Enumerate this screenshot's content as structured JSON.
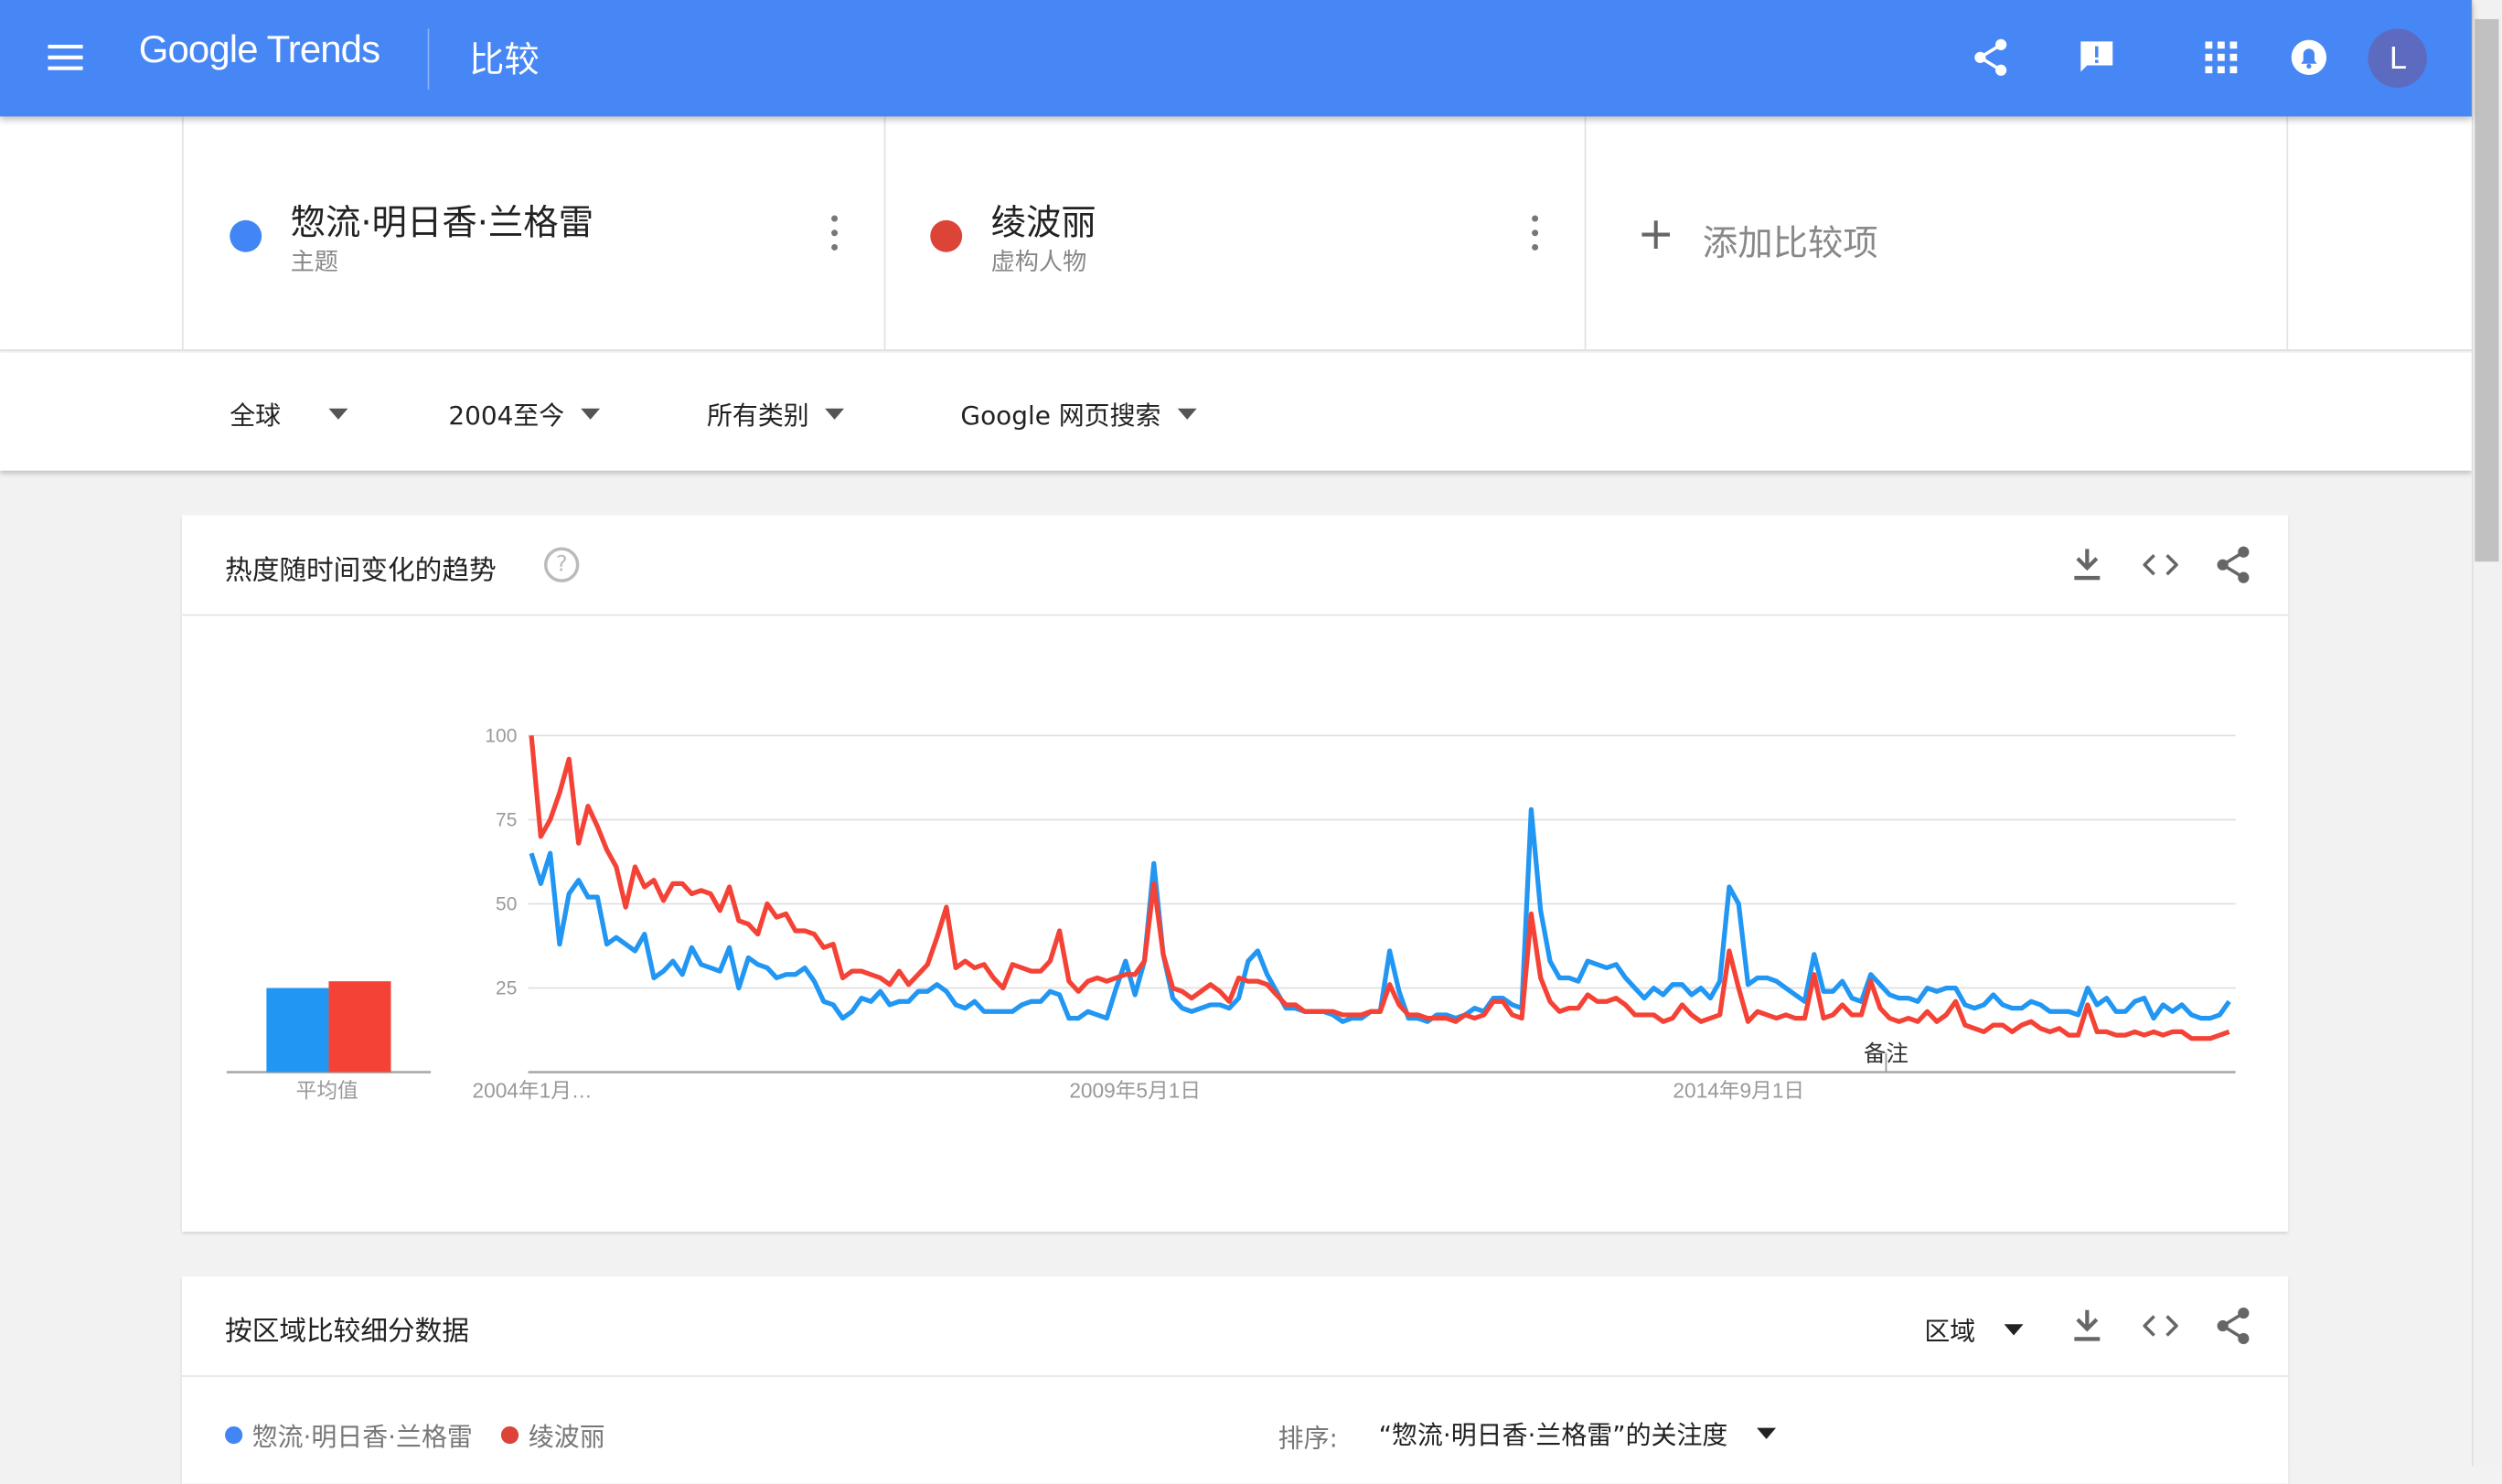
{
  "header": {
    "logo": "Google Trends",
    "title": "比较",
    "avatar_letter": "L",
    "color": "#4787f5",
    "icons": [
      "menu-icon",
      "share-icon",
      "feedback-icon",
      "apps-icon",
      "notifications-icon"
    ]
  },
  "terms": [
    {
      "name": "惣流·明日香·兰格雷",
      "type": "主题",
      "color": "#4285f4"
    },
    {
      "name": "绫波丽",
      "type": "虚构人物",
      "color": "#db4437"
    }
  ],
  "add_term": "添加比较项",
  "filters": [
    {
      "label": "全球"
    },
    {
      "label": "2004至今"
    },
    {
      "label": "所有类别"
    },
    {
      "label": "Google 网页搜索"
    }
  ],
  "interest_card": {
    "title": "热度随时间变化的趋势",
    "average_label": "平均值",
    "note_label": "备注"
  },
  "region_card": {
    "title": "按区域比较细分数据",
    "resolution": "区域",
    "legend": [
      "惣流·明日香·兰格雷",
      "绫波丽"
    ],
    "sort_label": "排序:",
    "sort_value": "“惣流·明日香·兰格雷”的关注度"
  },
  "chart_data": {
    "type": "line",
    "ylim": [
      0,
      100
    ],
    "y_ticks": [
      "100",
      "75",
      "50",
      "25"
    ],
    "x_tick_labels": [
      {
        "label": "2004年1月…",
        "month_index": 0
      },
      {
        "label": "2009年5月1日",
        "month_index": 64
      },
      {
        "label": "2014年9月1日",
        "month_index": 128
      }
    ],
    "x_interval": "month",
    "grid": true,
    "averages": [
      25,
      27
    ],
    "series": [
      {
        "name": "惣流·明日香·兰格雷",
        "color": "#2196f3",
        "values": [
          65,
          56,
          65,
          38,
          53,
          57,
          52,
          52,
          38,
          40,
          38,
          36,
          41,
          28,
          30,
          33,
          29,
          37,
          32,
          31,
          30,
          37,
          25,
          34,
          32,
          31,
          28,
          29,
          29,
          31,
          27,
          21,
          20,
          16,
          18,
          22,
          21,
          24,
          20,
          21,
          21,
          24,
          24,
          26,
          24,
          20,
          19,
          21,
          18,
          18,
          18,
          18,
          20,
          21,
          21,
          24,
          23,
          16,
          16,
          18,
          17,
          16,
          25,
          33,
          23,
          33,
          62,
          35,
          22,
          19,
          18,
          19,
          20,
          20,
          19,
          22,
          33,
          36,
          29,
          24,
          19,
          19,
          18,
          18,
          18,
          17,
          15,
          16,
          16,
          18,
          18,
          36,
          24,
          16,
          16,
          15,
          17,
          17,
          16,
          17,
          19,
          18,
          22,
          22,
          20,
          19,
          78,
          48,
          33,
          28,
          28,
          27,
          33,
          32,
          31,
          32,
          28,
          25,
          22,
          25,
          23,
          26,
          26,
          23,
          25,
          22,
          27,
          55,
          50,
          26,
          28,
          28,
          27,
          25,
          23,
          21,
          35,
          24,
          24,
          27,
          22,
          21,
          29,
          26,
          23,
          22,
          22,
          21,
          25,
          24,
          25,
          25,
          20,
          19,
          20,
          23,
          20,
          19,
          19,
          21,
          20,
          18,
          18,
          18,
          17,
          25,
          20,
          22,
          18,
          18,
          21,
          22,
          16,
          20,
          18,
          20,
          17,
          16,
          16,
          17,
          21
        ]
      },
      {
        "name": "绫波丽",
        "color": "#f44336",
        "values": [
          100,
          70,
          75,
          83,
          93,
          68,
          79,
          73,
          66,
          61,
          49,
          61,
          55,
          57,
          51,
          56,
          56,
          53,
          54,
          53,
          48,
          55,
          45,
          44,
          41,
          50,
          46,
          47,
          42,
          42,
          41,
          37,
          38,
          28,
          30,
          30,
          29,
          28,
          26,
          30,
          26,
          29,
          32,
          40,
          49,
          31,
          33,
          31,
          32,
          28,
          25,
          32,
          31,
          30,
          30,
          33,
          42,
          27,
          24,
          27,
          28,
          27,
          28,
          29,
          29,
          33,
          56,
          35,
          25,
          24,
          22,
          24,
          26,
          24,
          21,
          28,
          27,
          27,
          26,
          23,
          20,
          20,
          18,
          18,
          18,
          18,
          17,
          17,
          17,
          18,
          18,
          26,
          20,
          17,
          17,
          16,
          16,
          16,
          15,
          17,
          16,
          17,
          21,
          21,
          17,
          16,
          47,
          28,
          21,
          18,
          19,
          19,
          23,
          21,
          21,
          22,
          20,
          17,
          17,
          17,
          15,
          16,
          20,
          17,
          15,
          16,
          17,
          36,
          25,
          15,
          18,
          17,
          16,
          17,
          16,
          16,
          29,
          16,
          17,
          20,
          17,
          17,
          27,
          19,
          16,
          15,
          16,
          15,
          18,
          15,
          17,
          21,
          14,
          13,
          12,
          14,
          14,
          12,
          14,
          15,
          13,
          12,
          13,
          11,
          11,
          20,
          12,
          12,
          11,
          11,
          12,
          11,
          12,
          11,
          12,
          12,
          10,
          10,
          10,
          11,
          12
        ]
      }
    ]
  }
}
